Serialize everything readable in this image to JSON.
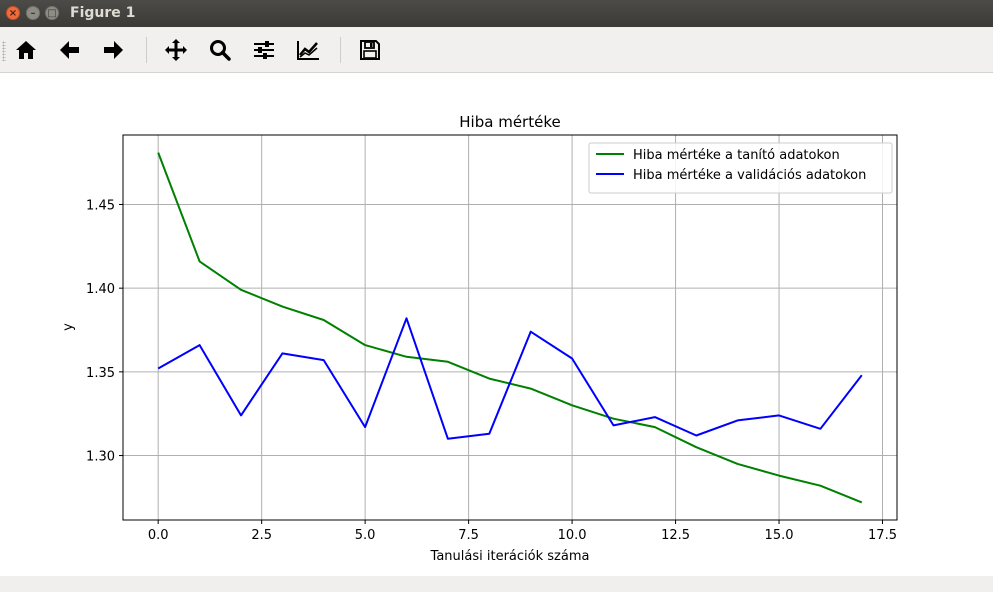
{
  "window": {
    "title": "Figure 1",
    "close_glyph": "×",
    "minimize_glyph": "–",
    "maximize_glyph": "□"
  },
  "toolbar": {
    "items": [
      {
        "name": "home",
        "icon": "home-icon"
      },
      {
        "name": "back",
        "icon": "arrow-left-icon"
      },
      {
        "name": "forward",
        "icon": "arrow-right-icon"
      },
      {
        "name": "pan",
        "icon": "move-icon"
      },
      {
        "name": "zoom",
        "icon": "magnifier-icon"
      },
      {
        "name": "subplots",
        "icon": "sliders-icon"
      },
      {
        "name": "edit-axes",
        "icon": "line-chart-icon"
      },
      {
        "name": "save",
        "icon": "floppy-disk-icon"
      }
    ]
  },
  "chart_data": {
    "type": "line",
    "title": "Hiba mértéke",
    "xlabel": "Tanulási iterációk száma",
    "ylabel": "y",
    "xlim": [
      -0.85,
      17.85
    ],
    "ylim": [
      1.2615,
      1.4915
    ],
    "xticks": [
      0,
      2.5,
      5,
      7.5,
      10,
      12.5,
      15,
      17.5
    ],
    "xtick_labels": [
      "0.0",
      "2.5",
      "5.0",
      "7.5",
      "10.0",
      "12.5",
      "15.0",
      "17.5"
    ],
    "yticks": [
      1.3,
      1.35,
      1.4,
      1.45
    ],
    "ytick_labels": [
      "1.30",
      "1.35",
      "1.40",
      "1.45"
    ],
    "grid": true,
    "legend_position": "top-right",
    "x": [
      0,
      1,
      2,
      3,
      4,
      5,
      6,
      7,
      8,
      9,
      10,
      11,
      12,
      13,
      14,
      15,
      16,
      17
    ],
    "series": [
      {
        "name": "Hiba mértéke a tanító adatokon",
        "color": "#008000",
        "values": [
          1.481,
          1.416,
          1.399,
          1.389,
          1.381,
          1.366,
          1.359,
          1.356,
          1.346,
          1.34,
          1.33,
          1.322,
          1.317,
          1.305,
          1.295,
          1.288,
          1.282,
          1.272
        ]
      },
      {
        "name": "Hiba mértéke a validációs adatokon",
        "color": "#0000ff",
        "values": [
          1.352,
          1.366,
          1.324,
          1.361,
          1.357,
          1.317,
          1.382,
          1.31,
          1.313,
          1.374,
          1.358,
          1.318,
          1.323,
          1.312,
          1.321,
          1.324,
          1.316,
          1.348
        ]
      }
    ]
  }
}
